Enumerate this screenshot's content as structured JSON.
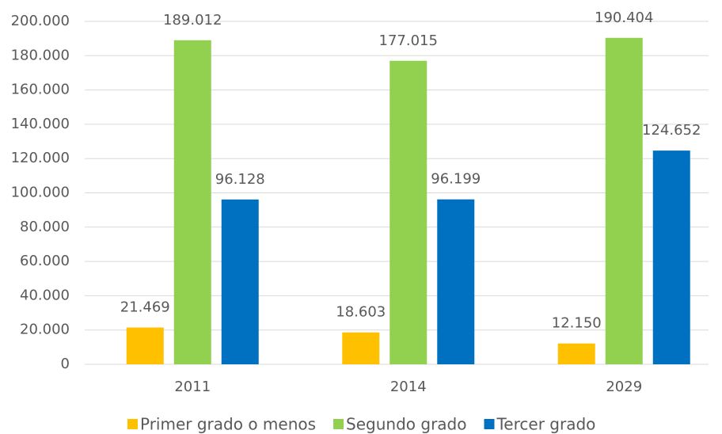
{
  "chart_data": {
    "type": "bar",
    "categories": [
      "2011",
      "2014",
      "2029"
    ],
    "series": [
      {
        "name": "Primer grado o menos",
        "color": "#FFC000",
        "values": [
          21469,
          18603,
          12150
        ],
        "value_labels": [
          "21.469",
          "18.603",
          "12.150"
        ]
      },
      {
        "name": "Segundo grado",
        "color": "#92D050",
        "values": [
          189012,
          177015,
          190404
        ],
        "value_labels": [
          "189.012",
          "177.015",
          "190.404"
        ]
      },
      {
        "name": "Tercer grado",
        "color": "#0070C0",
        "values": [
          96128,
          96199,
          124652
        ],
        "value_labels": [
          "96.128",
          "96.199",
          "124.652"
        ]
      }
    ],
    "ylim": [
      0,
      200000
    ],
    "yticks": [
      0,
      {
        "value": 20000,
        "label": "20.000"
      },
      {
        "value": 40000,
        "label": "40.000"
      },
      {
        "value": 60000,
        "label": "60.000"
      },
      {
        "value": 80000,
        "label": "80.000"
      },
      {
        "value": 100000,
        "label": "100.000"
      },
      {
        "value": 120000,
        "label": "120.000"
      },
      {
        "value": 140000,
        "label": "140.000"
      },
      {
        "value": 160000,
        "label": "160.000"
      },
      {
        "value": 180000,
        "label": "180.000"
      },
      {
        "value": 200000,
        "label": "200.000"
      }
    ],
    "grid": true,
    "legend": "bottom"
  }
}
